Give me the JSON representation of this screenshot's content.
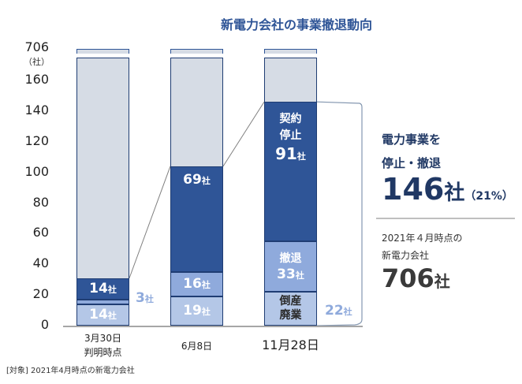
{
  "chart_data": {
    "type": "bar",
    "stacked": true,
    "title": "新電力会社の事業撤退動向",
    "y_unit": "（社）",
    "yticks": [
      "0",
      "20",
      "40",
      "60",
      "80",
      "100",
      "120",
      "140",
      "160",
      "706"
    ],
    "ylim": [
      0,
      706
    ],
    "axis_break": "160 to 706",
    "categories": [
      "3月30日\n判明時点",
      "6月8日",
      "11月28日"
    ],
    "series": [
      {
        "name": "倒産廃業",
        "values": [
          14,
          19,
          22
        ],
        "labels": [
          "14社",
          "19社",
          "22社"
        ],
        "color": "#b4c7e7"
      },
      {
        "name": "撤退",
        "values": [
          3,
          16,
          33
        ],
        "labels": [
          "3社",
          "16社",
          "33社"
        ],
        "color": "#8faadc"
      },
      {
        "name": "契約停止",
        "values": [
          14,
          69,
          91
        ],
        "labels": [
          "14社",
          "69社",
          "91社"
        ],
        "color": "#2f5597"
      }
    ],
    "remainder_color": "#d6dce5",
    "total": 706
  },
  "segment_text": {
    "bankrupt": [
      "倒産",
      "廃業"
    ],
    "withdraw": "撤退",
    "stop": [
      "契約",
      "停止"
    ]
  },
  "summary": {
    "heading_line1": "電力事業を",
    "heading_line2": "停止・撤退",
    "count": "146",
    "count_unit": "社",
    "percent": "（21%）",
    "sub_line1": "2021年４月時点の",
    "sub_line2": "新電力会社",
    "total": "706",
    "total_unit": "社"
  },
  "note": "[対象] 2021年4月時点の新電力会社"
}
